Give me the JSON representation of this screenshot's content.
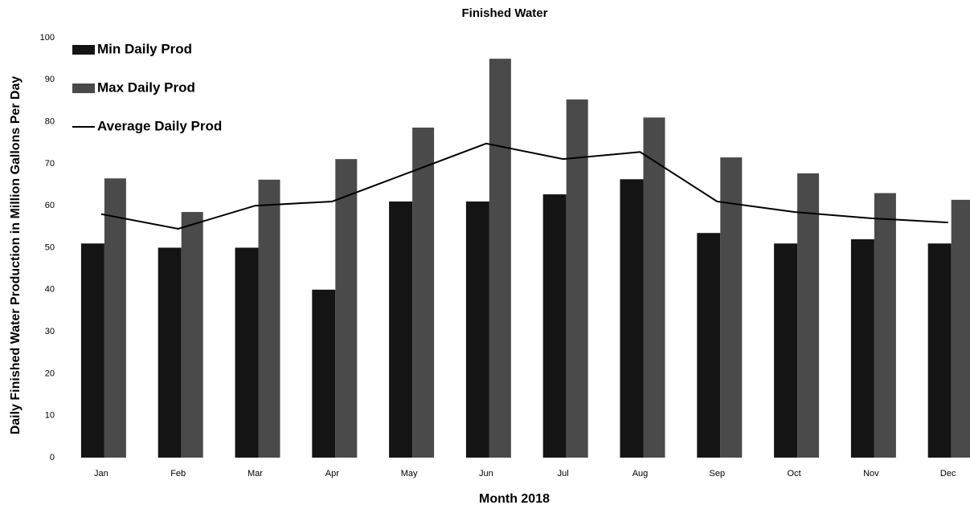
{
  "chart_data": {
    "type": "bar_line",
    "title": "Finished Water",
    "x_label": "Month 2018",
    "y_label": "Daily Finished Water Production in Million Gallons Per Day",
    "categories": [
      "Jan",
      "Feb",
      "Mar",
      "Apr",
      "May",
      "Jun",
      "Jul",
      "Aug",
      "Sep",
      "Oct",
      "Nov",
      "Dec"
    ],
    "series": [
      {
        "name": "Min Daily Prod",
        "type": "bar",
        "color": "#141414",
        "values": [
          51,
          50,
          50,
          40,
          61,
          61,
          62.7,
          66.3,
          53.5,
          51,
          52,
          51
        ]
      },
      {
        "name": "Max Daily Prod",
        "type": "bar",
        "color": "#4a4a4a",
        "values": [
          66.5,
          58.5,
          66.2,
          71.1,
          78.6,
          95,
          85.3,
          81,
          71.5,
          67.7,
          63,
          61.4
        ]
      },
      {
        "name": "Average Daily Prod",
        "type": "line",
        "color": "#000000",
        "values": [
          58,
          54.5,
          60,
          61,
          67.9,
          74.8,
          71.1,
          72.8,
          61,
          58.5,
          57,
          56
        ]
      }
    ],
    "ylim": [
      0,
      100
    ],
    "yticks": [
      0,
      10,
      20,
      30,
      40,
      50,
      60,
      70,
      80,
      90,
      100
    ],
    "grid": false,
    "legend": "top-left"
  }
}
